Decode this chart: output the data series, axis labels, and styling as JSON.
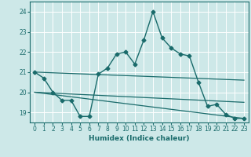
{
  "xlabel": "Humidex (Indice chaleur)",
  "xlim": [
    -0.5,
    23.5
  ],
  "ylim": [
    18.5,
    24.5
  ],
  "yticks": [
    19,
    20,
    21,
    22,
    23,
    24
  ],
  "xticks": [
    0,
    1,
    2,
    3,
    4,
    5,
    6,
    7,
    8,
    9,
    10,
    11,
    12,
    13,
    14,
    15,
    16,
    17,
    18,
    19,
    20,
    21,
    22,
    23
  ],
  "bg_color": "#cde8e8",
  "line_color": "#1a6b6b",
  "grid_color": "#ffffff",
  "lines": [
    {
      "x": [
        0,
        1,
        2,
        3,
        4,
        5,
        6,
        7,
        8,
        9,
        10,
        11,
        12,
        13,
        14,
        15,
        16,
        17,
        18,
        19,
        20,
        21,
        22,
        23
      ],
      "y": [
        21.0,
        20.7,
        20.0,
        19.6,
        19.6,
        18.8,
        18.8,
        20.9,
        21.2,
        21.9,
        22.0,
        21.4,
        22.6,
        24.0,
        22.7,
        22.2,
        21.9,
        21.8,
        20.5,
        19.3,
        19.4,
        18.9,
        18.7,
        18.7
      ],
      "marker": "D",
      "markersize": 2.5,
      "linewidth": 1.0,
      "zorder": 5
    },
    {
      "x": [
        0,
        23
      ],
      "y": [
        21.0,
        20.6
      ],
      "marker": null,
      "linewidth": 0.9,
      "zorder": 3
    },
    {
      "x": [
        0,
        23
      ],
      "y": [
        20.0,
        19.5
      ],
      "marker": null,
      "linewidth": 0.9,
      "zorder": 3
    },
    {
      "x": [
        0,
        23
      ],
      "y": [
        20.0,
        18.7
      ],
      "marker": null,
      "linewidth": 0.9,
      "zorder": 3
    }
  ]
}
